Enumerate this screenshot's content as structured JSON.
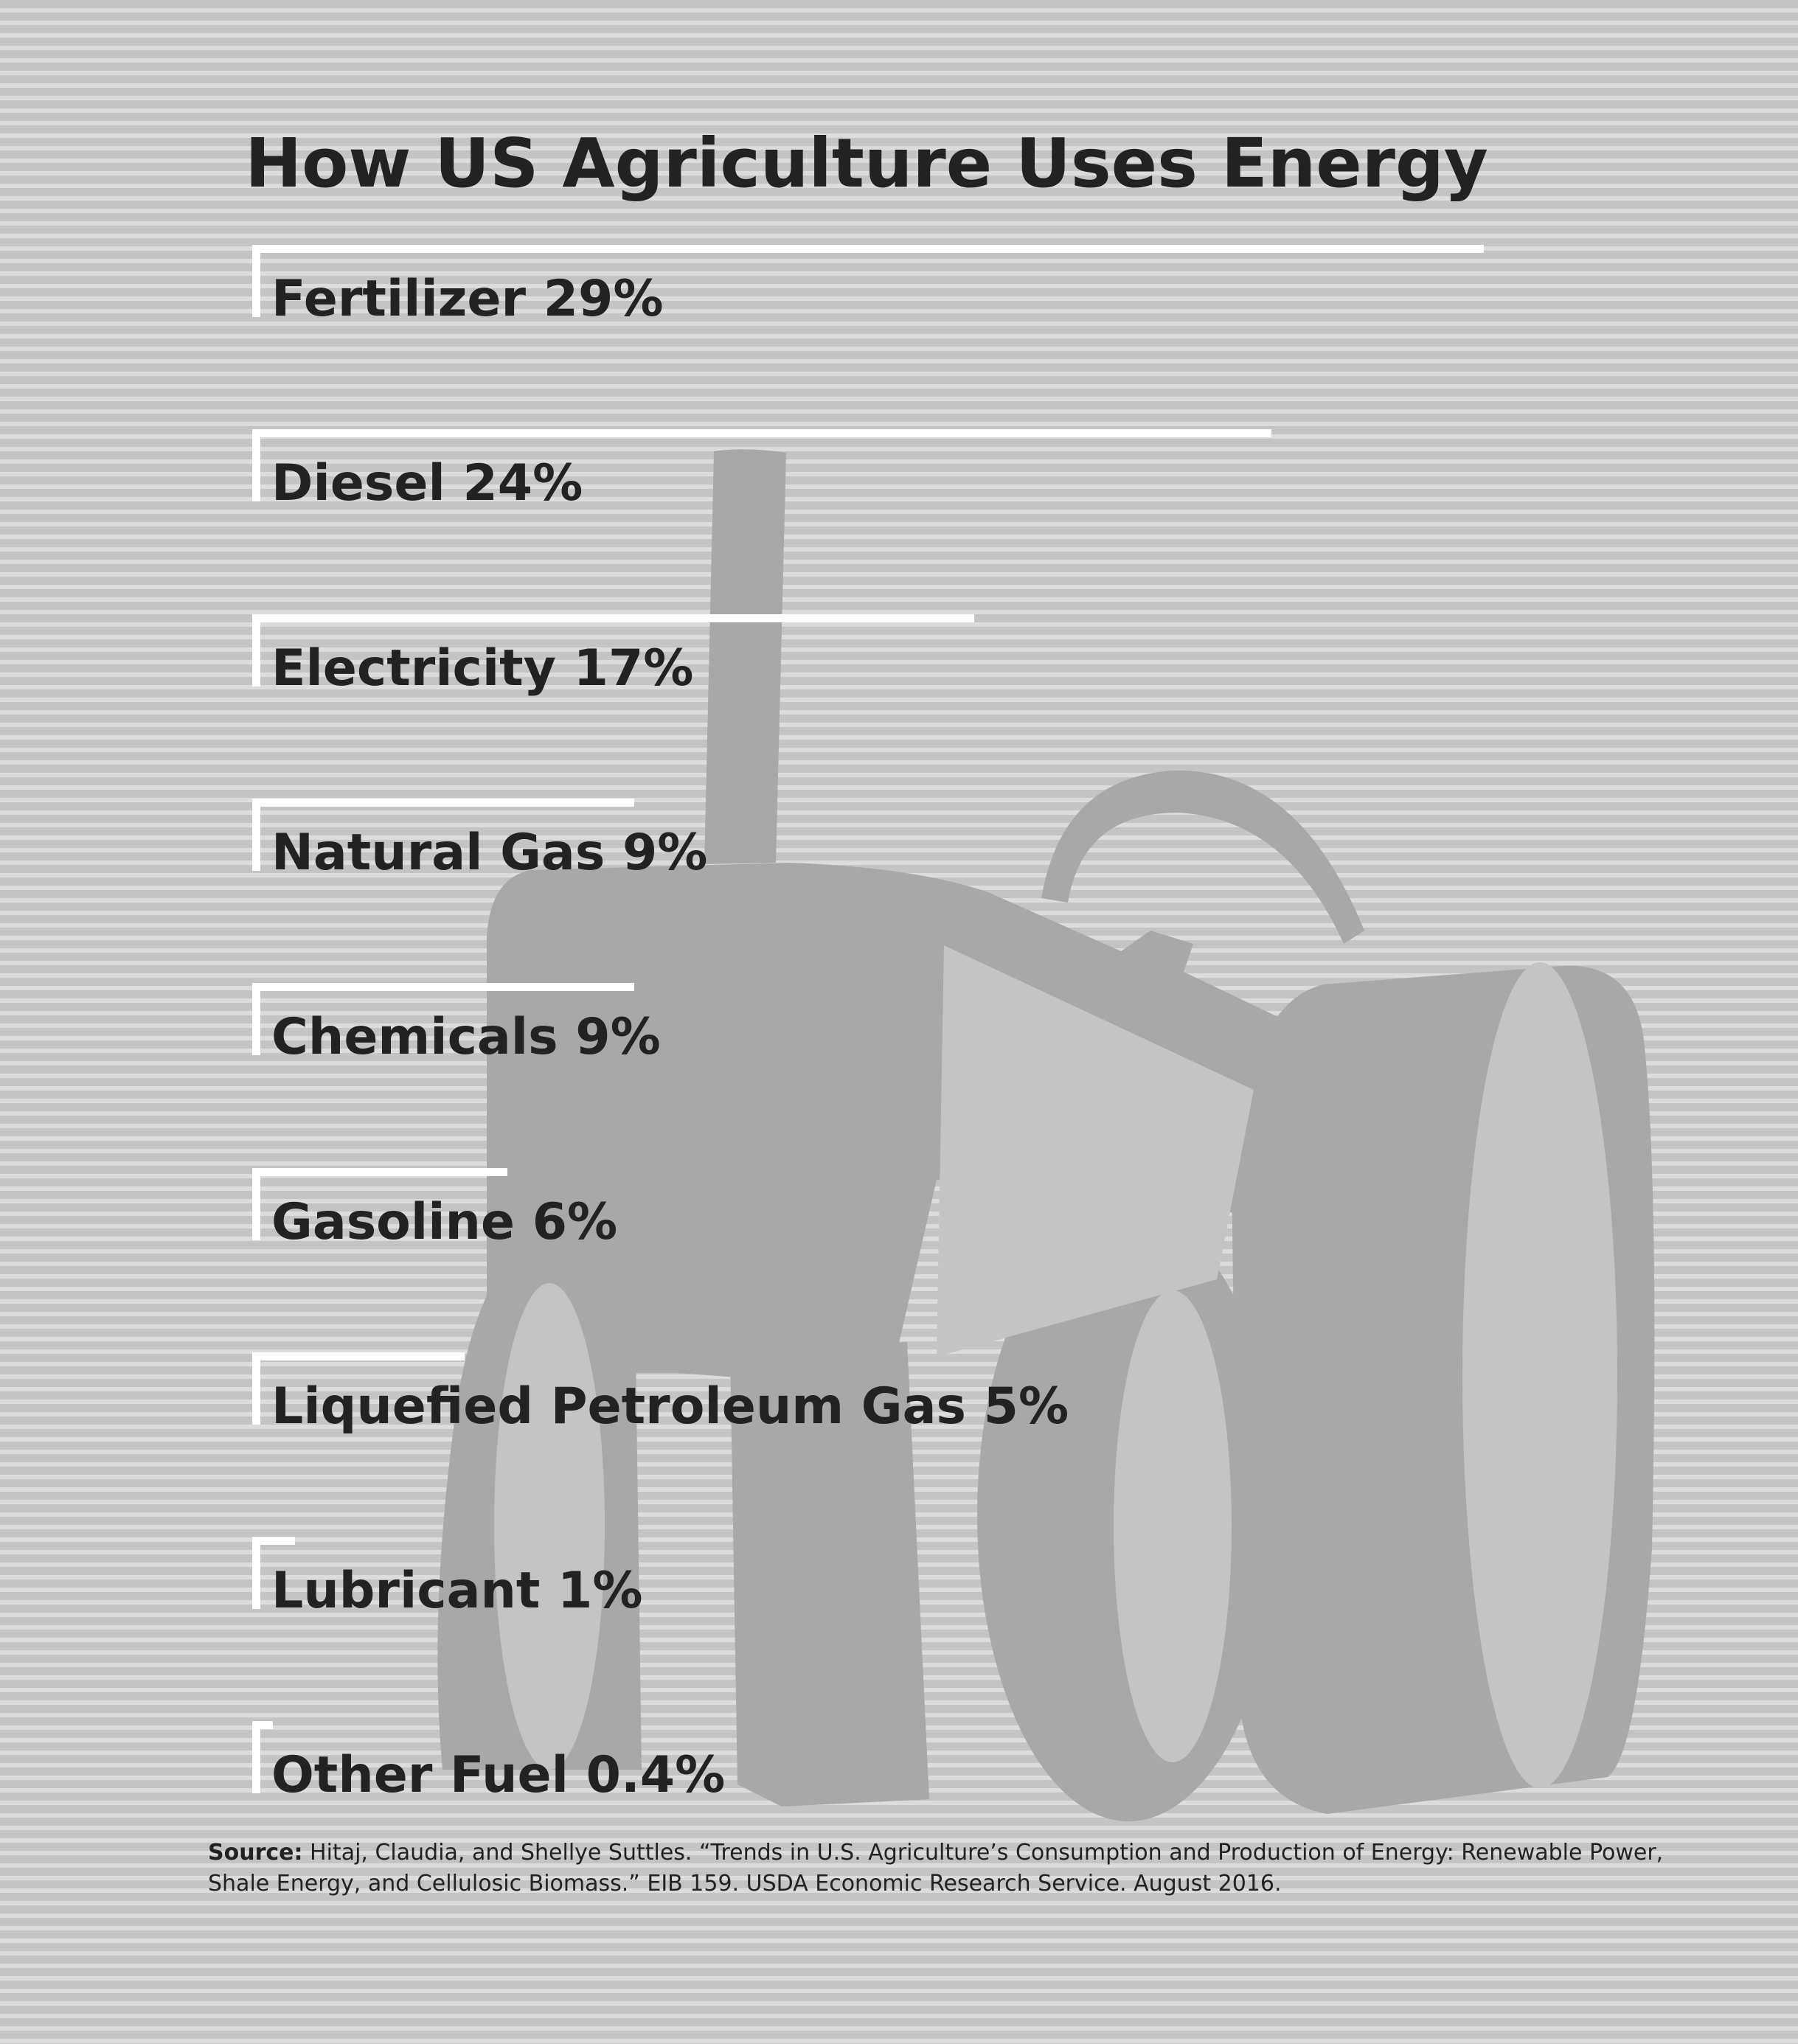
{
  "chart_data": {
    "type": "bar",
    "orientation": "horizontal",
    "title": "How US Agriculture Uses Energy",
    "categories": [
      "Fertilizer",
      "Diesel",
      "Electricity",
      "Natural Gas",
      "Chemicals",
      "Gasoline",
      "Liquefied Petroleum Gas",
      "Lubricant",
      "Other Fuel"
    ],
    "labels": [
      "Fertilizer 29%",
      "Diesel 24%",
      "Electricity 17%",
      "Natural Gas 9%",
      "Chemicals 9%",
      "Gasoline 6%",
      "Liquefied Petroleum Gas 5%",
      "Lubricant 1%",
      "Other Fuel 0.4%"
    ],
    "values": [
      29,
      24,
      17,
      9,
      9,
      6,
      5,
      1,
      0.4
    ],
    "unit": "%",
    "grid": false,
    "legend": "none"
  },
  "source": {
    "label": "Source:",
    "text": " Hitaj, Claudia, and Shellye Suttles. “Trends in U.S. Agriculture’s Consumption and Production of Energy: Renewable Power, Shale Energy, and Cellulosic Biomass.” EIB 159. USDA Economic Research Service. August 2016."
  },
  "colors": {
    "background": "#c4c4c4",
    "stripe": "#dcdcdc",
    "tractor": "#a8a8a8",
    "tractor_inner": "#c4c4c4",
    "bar": "#ffffff",
    "text": "#222222"
  },
  "icons": [
    "tractor-icon"
  ]
}
